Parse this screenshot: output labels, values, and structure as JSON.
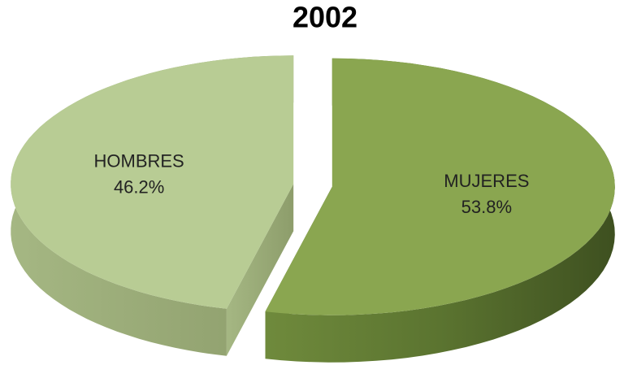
{
  "chart_data": {
    "type": "pie",
    "title": "2002",
    "categories": [
      "MUJERES",
      "HOMBRES"
    ],
    "values": [
      53.8,
      46.2
    ],
    "value_labels": [
      "53.8%",
      "46.2%"
    ],
    "colors": [
      "#8aa650",
      "#b8cc94"
    ]
  }
}
